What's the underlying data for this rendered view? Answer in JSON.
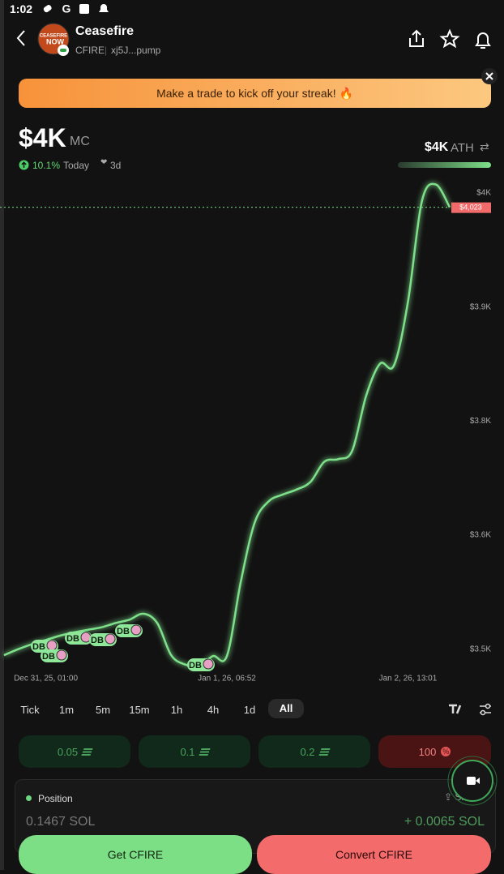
{
  "status_bar": {
    "time": "1:02"
  },
  "header": {
    "name": "Ceasefire",
    "logo_text": [
      "CEASEFIRE",
      "NOW"
    ],
    "ticker": "CFIRE",
    "address": "xj5J...pump"
  },
  "banner": {
    "text": "Make a trade to kick off your streak! 🔥"
  },
  "market_cap": {
    "value": "$4K",
    "unit": "MC",
    "change": "10.1%",
    "period": "Today",
    "range": "3d"
  },
  "ath": {
    "value": "$4K",
    "label": "ATH"
  },
  "chart_data": {
    "type": "line",
    "color": "#7ee08a",
    "categories": [
      null,
      null,
      null,
      "Dec 31, 25, 01:00",
      null,
      null,
      null,
      null,
      null,
      null,
      null,
      null,
      null,
      null,
      null,
      null,
      "Jan 1, 26, 06:52",
      null,
      null,
      null,
      null,
      null,
      null,
      null,
      null,
      null,
      null,
      null,
      null,
      "Jan 2, 26, 13:01",
      null,
      null,
      null
    ],
    "values": [
      3493,
      3500,
      3506,
      3511,
      3516,
      3520,
      3523,
      3526,
      3531,
      3535,
      3542,
      3531,
      3493,
      3482,
      3480,
      3492,
      3492,
      3580,
      3650,
      3675,
      3683,
      3689,
      3698,
      3722,
      3725,
      3735,
      3800,
      3838,
      3836,
      3911,
      4030,
      4050,
      4023
    ],
    "ylim": [
      3472,
      4062
    ],
    "yticks": [
      {
        "value": 4040,
        "label": "$4K"
      },
      {
        "value": 3905,
        "label": "$3.9K"
      },
      {
        "value": 3770,
        "label": "$3.8K"
      },
      {
        "value": 3635,
        "label": "$3.6K"
      },
      {
        "value": 3500,
        "label": "$3.5K"
      }
    ],
    "current_price": {
      "value": 4023,
      "label": "$4,023"
    },
    "markers": [
      "DB",
      "DB",
      "DB",
      "DB",
      "DB",
      "DB"
    ]
  },
  "timeframes": [
    "Tick",
    "1m",
    "5m",
    "15m",
    "1h",
    "4h",
    "1d",
    "All"
  ],
  "quick_buy": [
    "0.05",
    "0.1",
    "0.2"
  ],
  "quick_sell": "100",
  "position": {
    "title": "Position",
    "share": "Share",
    "amount": "0.1467 SOL",
    "pnl": "+ 0.0065 SOL"
  },
  "actions": {
    "buy": "Get CFIRE",
    "sell": "Convert CFIRE"
  }
}
